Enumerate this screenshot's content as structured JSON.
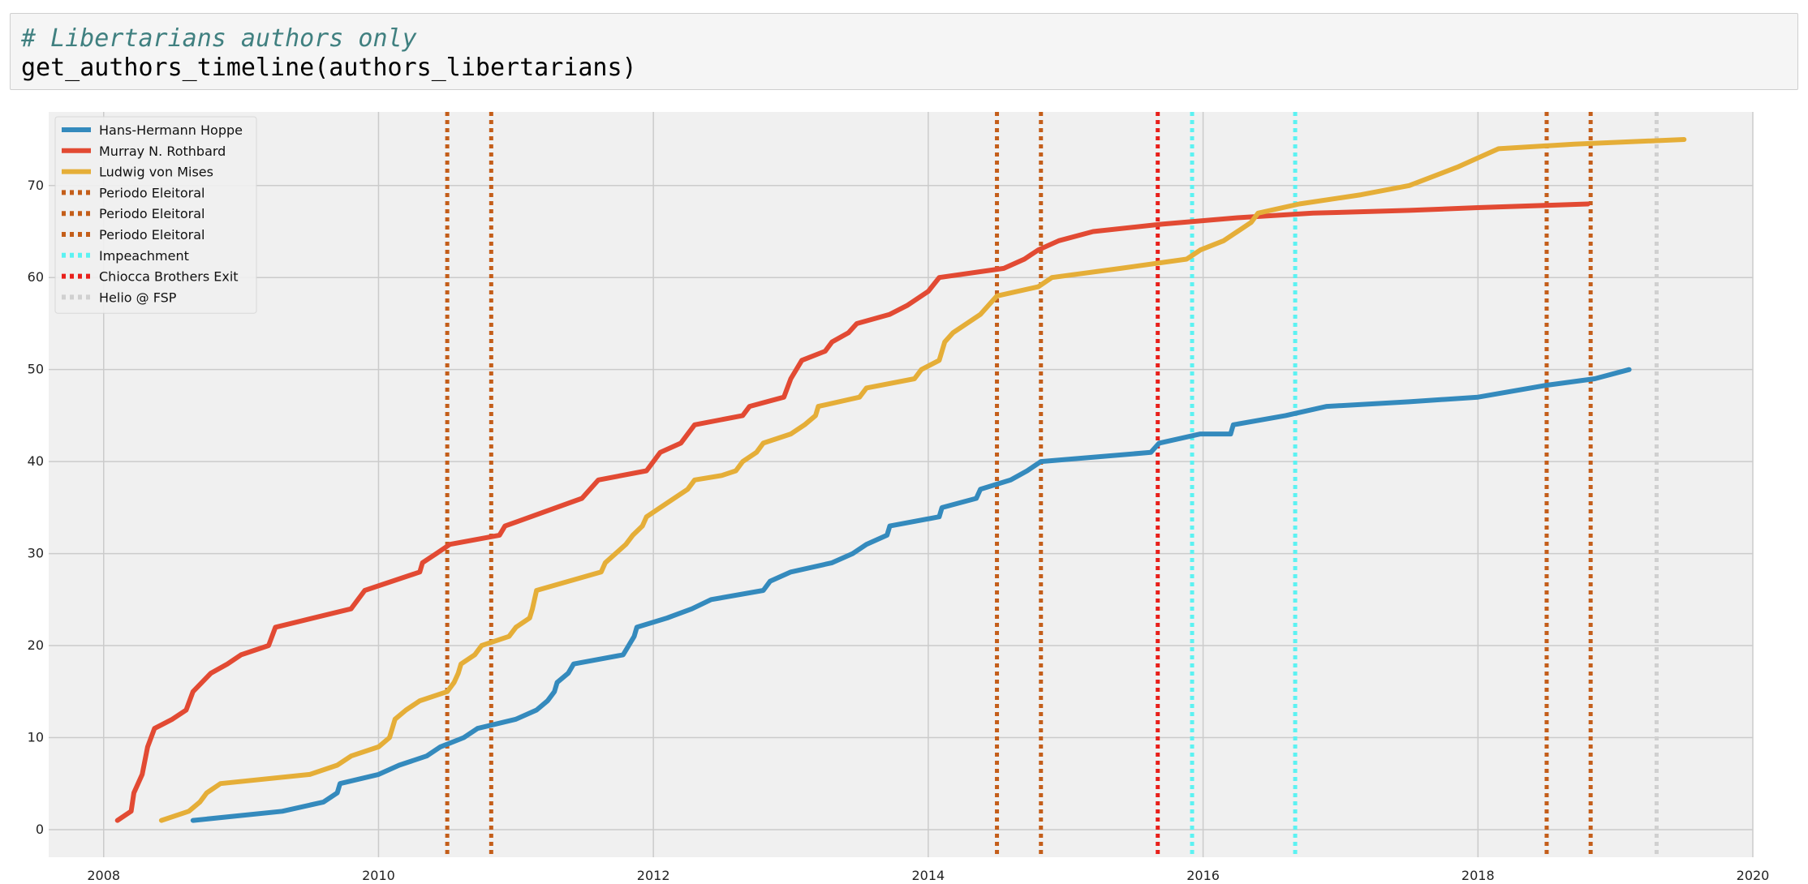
{
  "cell": {
    "comment": "# Libertarians authors only",
    "code": "get_authors_timeline(authors_libertarians)"
  },
  "chart_data": {
    "type": "line",
    "xlim": [
      2007.6,
      2020.0
    ],
    "ylim": [
      -3,
      78
    ],
    "x_ticks": [
      "2008",
      "2010",
      "2012",
      "2014",
      "2016",
      "2018",
      "2020"
    ],
    "y_ticks": [
      "0",
      "10",
      "20",
      "30",
      "40",
      "50",
      "60",
      "70"
    ],
    "grid": true,
    "legend_position": "top-left",
    "style": {
      "axes_bg": "#f0f0f0",
      "grid_color": "#cbcbcb"
    },
    "series": [
      {
        "name": "Hans-Hermann Hoppe",
        "color": "#348ABD",
        "points": [
          [
            2008.65,
            1
          ],
          [
            2009.3,
            2
          ],
          [
            2009.6,
            3
          ],
          [
            2009.7,
            4
          ],
          [
            2009.72,
            5
          ],
          [
            2010.0,
            6
          ],
          [
            2010.15,
            7
          ],
          [
            2010.35,
            8
          ],
          [
            2010.45,
            9
          ],
          [
            2010.62,
            10
          ],
          [
            2010.72,
            11
          ],
          [
            2011.0,
            12
          ],
          [
            2011.15,
            13
          ],
          [
            2011.23,
            14
          ],
          [
            2011.28,
            15
          ],
          [
            2011.3,
            16
          ],
          [
            2011.38,
            17
          ],
          [
            2011.42,
            18
          ],
          [
            2011.78,
            19
          ],
          [
            2011.82,
            20
          ],
          [
            2011.86,
            21
          ],
          [
            2011.88,
            22
          ],
          [
            2012.1,
            23
          ],
          [
            2012.28,
            24
          ],
          [
            2012.42,
            25
          ],
          [
            2012.8,
            26
          ],
          [
            2012.85,
            27
          ],
          [
            2013.0,
            28
          ],
          [
            2013.3,
            29
          ],
          [
            2013.45,
            30
          ],
          [
            2013.55,
            31
          ],
          [
            2013.7,
            32
          ],
          [
            2013.72,
            33
          ],
          [
            2014.08,
            34
          ],
          [
            2014.1,
            35
          ],
          [
            2014.35,
            36
          ],
          [
            2014.38,
            37
          ],
          [
            2014.6,
            38
          ],
          [
            2014.72,
            39
          ],
          [
            2014.82,
            40
          ],
          [
            2015.62,
            41
          ],
          [
            2015.68,
            42
          ],
          [
            2015.98,
            43
          ],
          [
            2016.2,
            43
          ],
          [
            2016.22,
            44
          ],
          [
            2016.6,
            45
          ],
          [
            2016.9,
            46
          ],
          [
            2017.5,
            46.5
          ],
          [
            2018.0,
            47
          ],
          [
            2018.5,
            48.3
          ],
          [
            2018.85,
            49
          ],
          [
            2019.1,
            50
          ]
        ]
      },
      {
        "name": "Murray N. Rothbard",
        "color": "#E24A33",
        "points": [
          [
            2008.1,
            1
          ],
          [
            2008.2,
            2
          ],
          [
            2008.22,
            4
          ],
          [
            2008.28,
            6
          ],
          [
            2008.32,
            9
          ],
          [
            2008.37,
            11
          ],
          [
            2008.5,
            12
          ],
          [
            2008.6,
            13
          ],
          [
            2008.65,
            15
          ],
          [
            2008.78,
            17
          ],
          [
            2008.9,
            18
          ],
          [
            2009.0,
            19
          ],
          [
            2009.2,
            20
          ],
          [
            2009.25,
            22
          ],
          [
            2009.8,
            24
          ],
          [
            2009.9,
            26
          ],
          [
            2010.3,
            28
          ],
          [
            2010.32,
            29
          ],
          [
            2010.42,
            30
          ],
          [
            2010.52,
            31
          ],
          [
            2010.88,
            32
          ],
          [
            2010.92,
            33
          ],
          [
            2011.48,
            36
          ],
          [
            2011.6,
            38
          ],
          [
            2011.95,
            39
          ],
          [
            2012.05,
            41
          ],
          [
            2012.2,
            42
          ],
          [
            2012.3,
            44
          ],
          [
            2012.65,
            45
          ],
          [
            2012.7,
            46
          ],
          [
            2012.95,
            47
          ],
          [
            2013.0,
            49
          ],
          [
            2013.08,
            51
          ],
          [
            2013.25,
            52
          ],
          [
            2013.3,
            53
          ],
          [
            2013.42,
            54
          ],
          [
            2013.48,
            55
          ],
          [
            2013.72,
            56
          ],
          [
            2013.85,
            57
          ],
          [
            2014.0,
            58.5
          ],
          [
            2014.08,
            60
          ],
          [
            2014.55,
            61
          ],
          [
            2014.7,
            62
          ],
          [
            2014.8,
            63
          ],
          [
            2014.95,
            64
          ],
          [
            2015.2,
            65
          ],
          [
            2015.7,
            65.8
          ],
          [
            2016.25,
            66.5
          ],
          [
            2016.8,
            67
          ],
          [
            2017.5,
            67.3
          ],
          [
            2018.0,
            67.6
          ],
          [
            2018.8,
            68
          ]
        ]
      },
      {
        "name": "Ludwig von Mises",
        "color": "#E5AE38",
        "points": [
          [
            2008.42,
            1
          ],
          [
            2008.62,
            2
          ],
          [
            2008.7,
            3
          ],
          [
            2008.75,
            4
          ],
          [
            2008.85,
            5
          ],
          [
            2009.5,
            6
          ],
          [
            2009.7,
            7
          ],
          [
            2009.8,
            8
          ],
          [
            2010.0,
            9
          ],
          [
            2010.08,
            10
          ],
          [
            2010.1,
            11
          ],
          [
            2010.12,
            12
          ],
          [
            2010.2,
            13
          ],
          [
            2010.3,
            14
          ],
          [
            2010.5,
            15
          ],
          [
            2010.55,
            16
          ],
          [
            2010.58,
            17
          ],
          [
            2010.6,
            18
          ],
          [
            2010.7,
            19
          ],
          [
            2010.75,
            20
          ],
          [
            2010.95,
            21
          ],
          [
            2011.0,
            22
          ],
          [
            2011.1,
            23
          ],
          [
            2011.12,
            24
          ],
          [
            2011.15,
            26
          ],
          [
            2011.62,
            28
          ],
          [
            2011.65,
            29
          ],
          [
            2011.8,
            31
          ],
          [
            2011.85,
            32
          ],
          [
            2011.92,
            33
          ],
          [
            2011.95,
            34
          ],
          [
            2012.05,
            35
          ],
          [
            2012.15,
            36
          ],
          [
            2012.25,
            37
          ],
          [
            2012.3,
            38
          ],
          [
            2012.5,
            38.5
          ],
          [
            2012.6,
            39
          ],
          [
            2012.65,
            40
          ],
          [
            2012.75,
            41
          ],
          [
            2012.8,
            42
          ],
          [
            2013.0,
            43
          ],
          [
            2013.1,
            44
          ],
          [
            2013.18,
            45
          ],
          [
            2013.2,
            46
          ],
          [
            2013.5,
            47
          ],
          [
            2013.55,
            48
          ],
          [
            2013.9,
            49
          ],
          [
            2013.95,
            50
          ],
          [
            2014.08,
            51
          ],
          [
            2014.12,
            53
          ],
          [
            2014.18,
            54
          ],
          [
            2014.38,
            56
          ],
          [
            2014.5,
            58
          ],
          [
            2014.8,
            59
          ],
          [
            2014.9,
            60
          ],
          [
            2015.4,
            61
          ],
          [
            2015.88,
            62
          ],
          [
            2015.98,
            63
          ],
          [
            2016.15,
            64
          ],
          [
            2016.35,
            66
          ],
          [
            2016.4,
            67
          ],
          [
            2016.7,
            68
          ],
          [
            2017.15,
            69
          ],
          [
            2017.5,
            70
          ],
          [
            2017.85,
            72
          ],
          [
            2018.0,
            73
          ],
          [
            2018.15,
            74
          ],
          [
            2018.7,
            74.5
          ],
          [
            2019.5,
            75
          ]
        ]
      },
      {
        "name": "Periodo Eleitoral",
        "color": "#C45E1A",
        "kind": "vline",
        "x": [
          2010.5,
          2010.82
        ]
      },
      {
        "name": "Periodo Eleitoral",
        "color": "#C45E1A",
        "kind": "vline",
        "x": [
          2014.5,
          2014.82
        ]
      },
      {
        "name": "Periodo Eleitoral",
        "color": "#C45E1A",
        "kind": "vline",
        "x": [
          2018.5,
          2018.82
        ]
      },
      {
        "name": "Impeachment",
        "color": "#5CF2F2",
        "kind": "vline",
        "x": [
          2015.92,
          2016.67
        ]
      },
      {
        "name": "Chiocca Brothers Exit",
        "color": "#E8201B",
        "kind": "vline",
        "x": [
          2015.67
        ]
      },
      {
        "name": "Helio @ FSP",
        "color": "#D0D0D0",
        "kind": "vline",
        "x": [
          2019.3
        ]
      }
    ]
  }
}
